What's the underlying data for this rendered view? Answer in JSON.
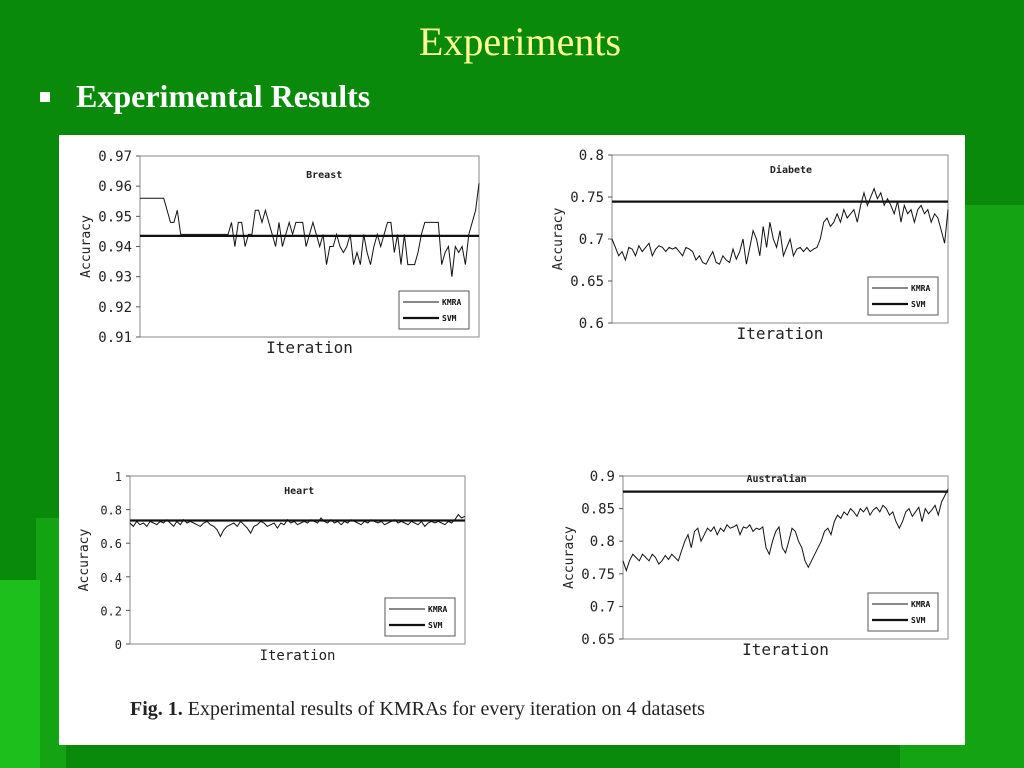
{
  "slide": {
    "title": "Experiments",
    "bullet_text": "Experimental Results",
    "caption_label": "Fig. 1.",
    "caption_text": " Experimental results of KMRAs for every iteration on 4 datasets",
    "colors": {
      "background": "#0a8a0a",
      "title": "#ffff99",
      "text": "#ffffff"
    }
  },
  "chart_data": [
    {
      "type": "line",
      "title": "Breast",
      "xlabel": "Iteration",
      "ylabel": "Accuracy",
      "ylim": [
        0.91,
        0.97
      ],
      "yticks": [
        "0.97",
        "0.96",
        "0.95",
        "0.94",
        "0.93",
        "0.92",
        "0.91"
      ],
      "legend": {
        "position": "bottom-right",
        "entries": [
          "KMRA",
          "SVM"
        ]
      },
      "series": [
        {
          "name": "KMRA",
          "values": [
            0.956,
            0.956,
            0.956,
            0.956,
            0.956,
            0.956,
            0.956,
            0.956,
            0.952,
            0.948,
            0.948,
            0.952,
            0.944,
            0.944,
            0.944,
            0.944,
            0.944,
            0.944,
            0.944,
            0.944,
            0.944,
            0.944,
            0.944,
            0.944,
            0.944,
            0.944,
            0.944,
            0.948,
            0.94,
            0.948,
            0.948,
            0.94,
            0.944,
            0.944,
            0.952,
            0.952,
            0.948,
            0.952,
            0.948,
            0.944,
            0.94,
            0.948,
            0.94,
            0.944,
            0.948,
            0.944,
            0.948,
            0.948,
            0.948,
            0.94,
            0.944,
            0.948,
            0.944,
            0.94,
            0.944,
            0.934,
            0.94,
            0.94,
            0.944,
            0.94,
            0.938,
            0.94,
            0.944,
            0.934,
            0.938,
            0.934,
            0.944,
            0.938,
            0.934,
            0.94,
            0.944,
            0.94,
            0.944,
            0.948,
            0.948,
            0.938,
            0.944,
            0.934,
            0.944,
            0.934,
            0.934,
            0.934,
            0.938,
            0.944,
            0.948,
            0.948,
            0.948,
            0.948,
            0.948,
            0.934,
            0.938,
            0.94,
            0.93,
            0.94,
            0.938,
            0.94,
            0.934,
            0.944,
            0.948,
            0.952,
            0.961
          ]
        },
        {
          "name": "SVM",
          "values": [
            0.9435,
            0.9435
          ]
        }
      ]
    },
    {
      "type": "line",
      "title": "Diabete",
      "xlabel": "Iteration",
      "ylabel": "Accuracy",
      "ylim": [
        0.6,
        0.8
      ],
      "yticks": [
        "0.8",
        "0.75",
        "0.7",
        "0.65",
        "0.6"
      ],
      "legend": {
        "position": "bottom-right",
        "entries": [
          "KMRA",
          "SVM"
        ]
      },
      "series": [
        {
          "name": "KMRA",
          "values": [
            0.7,
            0.69,
            0.68,
            0.685,
            0.675,
            0.69,
            0.688,
            0.68,
            0.692,
            0.685,
            0.69,
            0.695,
            0.68,
            0.688,
            0.692,
            0.69,
            0.685,
            0.69,
            0.688,
            0.69,
            0.685,
            0.68,
            0.69,
            0.688,
            0.685,
            0.675,
            0.68,
            0.672,
            0.67,
            0.678,
            0.685,
            0.672,
            0.67,
            0.68,
            0.675,
            0.672,
            0.688,
            0.676,
            0.685,
            0.7,
            0.67,
            0.69,
            0.71,
            0.7,
            0.68,
            0.715,
            0.69,
            0.72,
            0.7,
            0.69,
            0.71,
            0.68,
            0.69,
            0.7,
            0.68,
            0.688,
            0.69,
            0.685,
            0.69,
            0.685,
            0.688,
            0.69,
            0.7,
            0.72,
            0.725,
            0.715,
            0.72,
            0.73,
            0.72,
            0.735,
            0.725,
            0.73,
            0.735,
            0.72,
            0.74,
            0.755,
            0.74,
            0.75,
            0.76,
            0.748,
            0.755,
            0.74,
            0.748,
            0.74,
            0.73,
            0.745,
            0.72,
            0.74,
            0.73,
            0.735,
            0.72,
            0.735,
            0.74,
            0.73,
            0.735,
            0.72,
            0.73,
            0.725,
            0.71,
            0.695,
            0.735
          ]
        },
        {
          "name": "SVM",
          "values": [
            0.7445,
            0.7445
          ]
        }
      ]
    },
    {
      "type": "line",
      "title": "Heart",
      "xlabel": "Iteration",
      "ylabel": "Accuracy",
      "ylim": [
        0,
        1
      ],
      "yticks": [
        "1",
        "0.8",
        "0.6",
        "0.4",
        "0.2",
        "0"
      ],
      "legend": {
        "position": "bottom-right",
        "entries": [
          "KMRA",
          "SVM"
        ]
      },
      "series": [
        {
          "name": "KMRA",
          "values": [
            0.72,
            0.7,
            0.73,
            0.71,
            0.72,
            0.7,
            0.73,
            0.72,
            0.71,
            0.73,
            0.72,
            0.74,
            0.72,
            0.7,
            0.73,
            0.71,
            0.74,
            0.72,
            0.73,
            0.72,
            0.71,
            0.7,
            0.72,
            0.73,
            0.71,
            0.7,
            0.68,
            0.64,
            0.68,
            0.7,
            0.71,
            0.72,
            0.7,
            0.73,
            0.71,
            0.69,
            0.66,
            0.7,
            0.71,
            0.73,
            0.72,
            0.7,
            0.71,
            0.72,
            0.69,
            0.72,
            0.71,
            0.74,
            0.72,
            0.73,
            0.71,
            0.72,
            0.73,
            0.72,
            0.74,
            0.73,
            0.72,
            0.75,
            0.73,
            0.72,
            0.74,
            0.72,
            0.73,
            0.71,
            0.73,
            0.72,
            0.74,
            0.73,
            0.72,
            0.71,
            0.73,
            0.72,
            0.74,
            0.73,
            0.72,
            0.73,
            0.71,
            0.72,
            0.73,
            0.74,
            0.72,
            0.73,
            0.72,
            0.71,
            0.73,
            0.72,
            0.71,
            0.73,
            0.7,
            0.72,
            0.73,
            0.72,
            0.73,
            0.72,
            0.71,
            0.73,
            0.72,
            0.74,
            0.77,
            0.75,
            0.76
          ]
        },
        {
          "name": "SVM",
          "values": [
            0.735,
            0.735
          ]
        }
      ]
    },
    {
      "type": "line",
      "title": "Australian",
      "xlabel": "Iteration",
      "ylabel": "Accuracy",
      "ylim": [
        0.65,
        0.9
      ],
      "yticks": [
        "0.9",
        "0.85",
        "0.8",
        "0.75",
        "0.7",
        "0.65"
      ],
      "legend": {
        "position": "bottom-right",
        "entries": [
          "KMRA",
          "SVM"
        ]
      },
      "series": [
        {
          "name": "KMRA",
          "values": [
            0.77,
            0.755,
            0.77,
            0.78,
            0.775,
            0.77,
            0.78,
            0.775,
            0.77,
            0.78,
            0.775,
            0.765,
            0.77,
            0.778,
            0.772,
            0.78,
            0.775,
            0.77,
            0.785,
            0.8,
            0.81,
            0.79,
            0.815,
            0.82,
            0.8,
            0.81,
            0.82,
            0.815,
            0.822,
            0.81,
            0.82,
            0.815,
            0.825,
            0.82,
            0.822,
            0.825,
            0.81,
            0.822,
            0.82,
            0.825,
            0.815,
            0.82,
            0.818,
            0.822,
            0.79,
            0.78,
            0.8,
            0.815,
            0.822,
            0.79,
            0.782,
            0.8,
            0.82,
            0.815,
            0.8,
            0.79,
            0.77,
            0.76,
            0.77,
            0.78,
            0.79,
            0.8,
            0.815,
            0.82,
            0.81,
            0.83,
            0.84,
            0.835,
            0.845,
            0.84,
            0.85,
            0.845,
            0.838,
            0.85,
            0.845,
            0.852,
            0.84,
            0.848,
            0.852,
            0.845,
            0.855,
            0.85,
            0.84,
            0.845,
            0.83,
            0.82,
            0.83,
            0.845,
            0.85,
            0.838,
            0.845,
            0.852,
            0.83,
            0.85,
            0.842,
            0.848,
            0.855,
            0.84,
            0.86,
            0.87,
            0.88
          ]
        },
        {
          "name": "SVM",
          "values": [
            0.876,
            0.876
          ]
        }
      ]
    }
  ]
}
